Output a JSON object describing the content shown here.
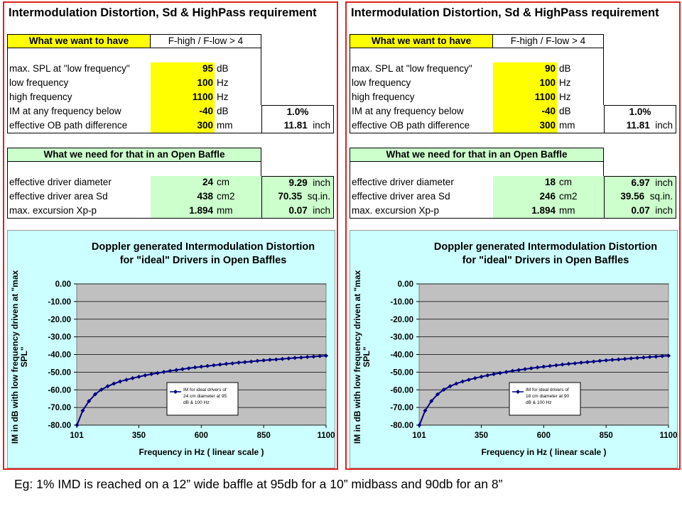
{
  "panels": [
    {
      "title": "Intermodulation Distortion, Sd & HighPass requirement",
      "want_header": "What we want to have",
      "ratio_note": "F-high / F-low > 4",
      "inputs": [
        {
          "label": "max. SPL at \"low frequency\"",
          "value": "95",
          "unit": "dB"
        },
        {
          "label": "low frequency",
          "value": "100",
          "unit": "Hz"
        },
        {
          "label": "high frequency",
          "value": "1100",
          "unit": "Hz"
        },
        {
          "label": "IM at any frequency below",
          "value": "-40",
          "unit": "dB"
        },
        {
          "label": "effective OB path difference",
          "value": "300",
          "unit": "mm"
        }
      ],
      "im_percent": "1.0%",
      "path_inch": "11.81",
      "path_inch_unit": "inch",
      "need_header": "What we need for that in an Open Baffle",
      "outputs": [
        {
          "label": "effective driver diameter",
          "value": "24",
          "unit": "cm",
          "value2": "9.29",
          "unit2": "inch"
        },
        {
          "label": "effective driver area Sd",
          "value": "438",
          "unit": "cm2",
          "value2": "70.35",
          "unit2": "sq.in."
        },
        {
          "label": "max. excursion Xp-p",
          "value": "1.894",
          "unit": "mm",
          "value2": "0.07",
          "unit2": "inch"
        }
      ]
    },
    {
      "title": "Intermodulation Distortion, Sd & HighPass requirement",
      "want_header": "What we want to have",
      "ratio_note": "F-high / F-low > 4",
      "inputs": [
        {
          "label": "max. SPL at \"low frequency\"",
          "value": "90",
          "unit": "dB"
        },
        {
          "label": "low frequency",
          "value": "100",
          "unit": "Hz"
        },
        {
          "label": "high frequency",
          "value": "1100",
          "unit": "Hz"
        },
        {
          "label": "IM at any frequency below",
          "value": "-40",
          "unit": "dB"
        },
        {
          "label": "effective OB path difference",
          "value": "300",
          "unit": "mm"
        }
      ],
      "im_percent": "1.0%",
      "path_inch": "11.81",
      "path_inch_unit": "inch",
      "need_header": "What we need for that in an Open Baffle",
      "outputs": [
        {
          "label": "effective driver diameter",
          "value": "18",
          "unit": "cm",
          "value2": "6.97",
          "unit2": "inch"
        },
        {
          "label": "effective driver area Sd",
          "value": "246",
          "unit": "cm2",
          "value2": "39.56",
          "unit2": "sq.in."
        },
        {
          "label": "max. excursion Xp-p",
          "value": "1.894",
          "unit": "mm",
          "value2": "0.07",
          "unit2": "inch"
        }
      ]
    }
  ],
  "chart_data": [
    {
      "type": "line",
      "title": "Doppler generated Intermodulation Distortion for \"ideal\" Drivers in Open Baffles",
      "title_lines": [
        "Doppler generated Intermodulation Distortion",
        "for \"ideal\" Drivers in Open Baffles"
      ],
      "xlabel": "Frequency in Hz ( linear scale )",
      "ylabel": "IM in dB with low frequency driven at \"max SPL\"",
      "ylabel_lines": [
        "IM in dB with low frequency driven at \"max",
        "SPL\""
      ],
      "xlim": [
        101,
        1100
      ],
      "ylim": [
        -80,
        0
      ],
      "xticks": [
        "101",
        "350",
        "600",
        "850",
        "1100"
      ],
      "xtick_values": [
        101,
        350,
        600,
        850,
        1100
      ],
      "yticks": [
        "0.00",
        "-10.00",
        "-20.00",
        "-30.00",
        "-40.00",
        "-50.00",
        "-60.00",
        "-70.00",
        "-80.00"
      ],
      "ytick_values": [
        0,
        -10,
        -20,
        -30,
        -40,
        -50,
        -60,
        -70,
        -80
      ],
      "grid": true,
      "legend_position": "bottom-right",
      "series": [
        {
          "name": "IM for ideal drivers of 24 cm diameter at 95 dB & 100 Hz",
          "legend_lines": [
            "IM for ideal drivers of",
            "24 cm diameter  at 95",
            "dB & 100 Hz"
          ],
          "color": "#000080",
          "x": [
            102,
            125,
            150,
            175,
            200,
            225,
            250,
            275,
            300,
            325,
            350,
            375,
            400,
            425,
            450,
            475,
            500,
            525,
            550,
            575,
            600,
            625,
            650,
            675,
            700,
            725,
            750,
            775,
            800,
            825,
            850,
            875,
            900,
            925,
            950,
            975,
            1000,
            1025,
            1050,
            1075,
            1100
          ],
          "y": [
            -80.0,
            -71.8,
            -66.4,
            -62.5,
            -59.9,
            -58.0,
            -56.5,
            -55.3,
            -54.3,
            -53.4,
            -52.6,
            -51.8,
            -51.1,
            -50.5,
            -49.9,
            -49.3,
            -48.8,
            -48.3,
            -47.8,
            -47.3,
            -46.9,
            -46.5,
            -46.1,
            -45.7,
            -45.3,
            -45.0,
            -44.6,
            -44.3,
            -44.0,
            -43.6,
            -43.3,
            -43.0,
            -42.8,
            -42.5,
            -42.2,
            -41.9,
            -41.7,
            -41.4,
            -41.2,
            -40.9,
            -40.7
          ]
        }
      ]
    },
    {
      "type": "line",
      "title": "Doppler generated Intermodulation Distortion for \"ideal\" Drivers in Open Baffles",
      "title_lines": [
        "Doppler generated Intermodulation Distortion",
        "for \"ideal\" Drivers in Open Baffles"
      ],
      "xlabel": "Frequency in Hz ( linear scale )",
      "ylabel": "IM in dB with low frequency driven at \"max SPL\"",
      "ylabel_lines": [
        "IM in dB with low frequency driven at \"max",
        "SPL\""
      ],
      "xlim": [
        101,
        1100
      ],
      "ylim": [
        -80,
        0
      ],
      "xticks": [
        "101",
        "350",
        "600",
        "850",
        "1100"
      ],
      "xtick_values": [
        101,
        350,
        600,
        850,
        1100
      ],
      "yticks": [
        "0.00",
        "-10.00",
        "-20.00",
        "-30.00",
        "-40.00",
        "-50.00",
        "-60.00",
        "-70.00",
        "-80.00"
      ],
      "ytick_values": [
        0,
        -10,
        -20,
        -30,
        -40,
        -50,
        -60,
        -70,
        -80
      ],
      "grid": true,
      "legend_position": "bottom-right",
      "series": [
        {
          "name": "IM for ideal drivers of 18 cm diameter at 90 dB & 100 Hz",
          "legend_lines": [
            "IM for ideal drivers of",
            "18 cm diameter  at 90",
            "dB & 100 Hz"
          ],
          "color": "#000080",
          "x": [
            102,
            125,
            150,
            175,
            200,
            225,
            250,
            275,
            300,
            325,
            350,
            375,
            400,
            425,
            450,
            475,
            500,
            525,
            550,
            575,
            600,
            625,
            650,
            675,
            700,
            725,
            750,
            775,
            800,
            825,
            850,
            875,
            900,
            925,
            950,
            975,
            1000,
            1025,
            1050,
            1075,
            1100
          ],
          "y": [
            -80.0,
            -71.8,
            -66.4,
            -62.5,
            -59.9,
            -58.0,
            -56.5,
            -55.3,
            -54.3,
            -53.4,
            -52.6,
            -51.8,
            -51.1,
            -50.5,
            -49.9,
            -49.3,
            -48.8,
            -48.3,
            -47.8,
            -47.3,
            -46.9,
            -46.5,
            -46.1,
            -45.7,
            -45.3,
            -45.0,
            -44.6,
            -44.3,
            -44.0,
            -43.6,
            -43.3,
            -43.0,
            -42.8,
            -42.5,
            -42.2,
            -41.9,
            -41.7,
            -41.4,
            -41.2,
            -40.9,
            -40.7
          ]
        }
      ]
    }
  ],
  "caption": "Eg:  1%  IMD is reached on a 12” wide baffle at 95db for a 10” midbass and 90db for an 8”"
}
